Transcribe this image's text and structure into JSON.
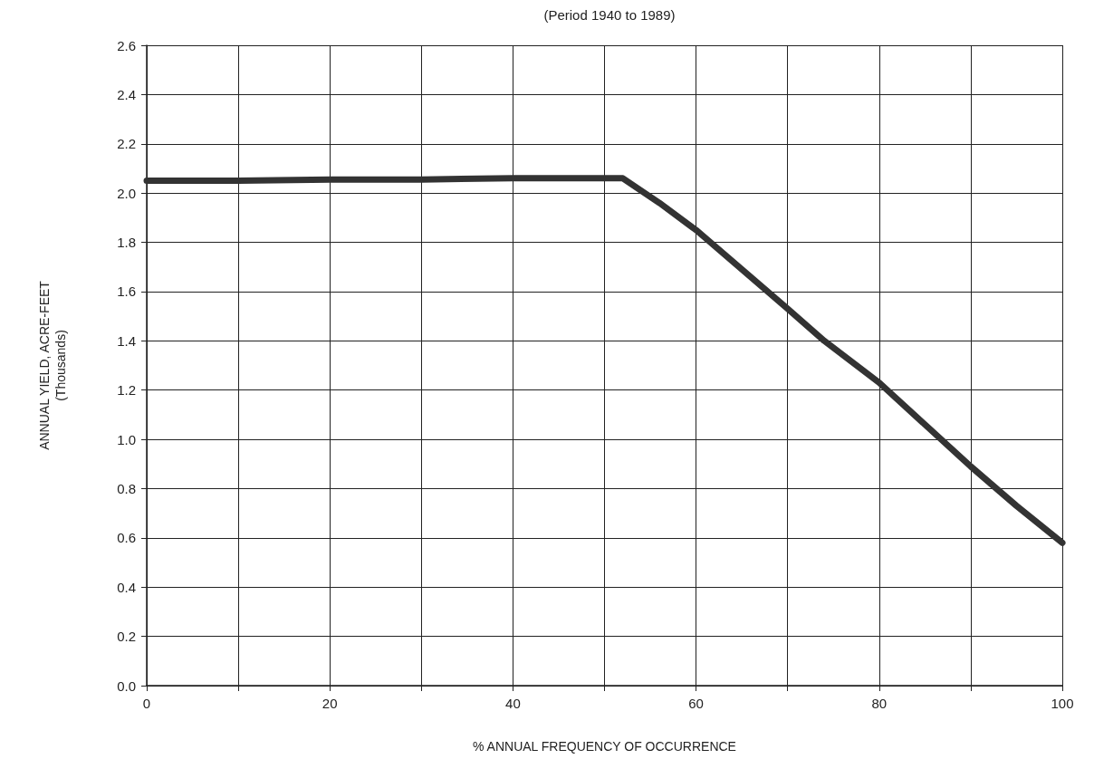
{
  "chart_data": {
    "type": "line",
    "title": "(Period 1940 to 1989)",
    "xlabel": "% ANNUAL FREQUENCY OF OCCURRENCE",
    "ylabel": "ANNUAL YIELD, ACRE-FEET\n(Thousands)",
    "series": [
      {
        "color": "#333333",
        "x": [
          0,
          10,
          20,
          30,
          40,
          52,
          56,
          60,
          65,
          70,
          74,
          80,
          85,
          90,
          95,
          100
        ],
        "values": [
          2.05,
          2.05,
          2.055,
          2.055,
          2.06,
          2.06,
          1.96,
          1.85,
          1.69,
          1.53,
          1.4,
          1.23,
          1.06,
          0.89,
          0.73,
          0.58
        ]
      }
    ],
    "xlim": [
      0,
      100
    ],
    "xticks": [
      0,
      {
        "value": 10,
        "label": null
      },
      20,
      {
        "value": 30,
        "label": null
      },
      40,
      {
        "value": 50,
        "label": null
      },
      60,
      {
        "value": 70,
        "label": null
      },
      80,
      {
        "value": 90,
        "label": null
      },
      100
    ],
    "ylim": [
      0,
      2.6
    ],
    "yticks": [
      {
        "value": 0,
        "label": "0.0"
      },
      0.2,
      0.4,
      0.6,
      0.8,
      {
        "value": 1,
        "label": "1.0"
      },
      1.2,
      1.4,
      1.6,
      1.8,
      {
        "value": 2,
        "label": "2.0"
      },
      2.2,
      2.4,
      2.6
    ],
    "grid": true,
    "marker": "none",
    "line_style": "solid"
  }
}
